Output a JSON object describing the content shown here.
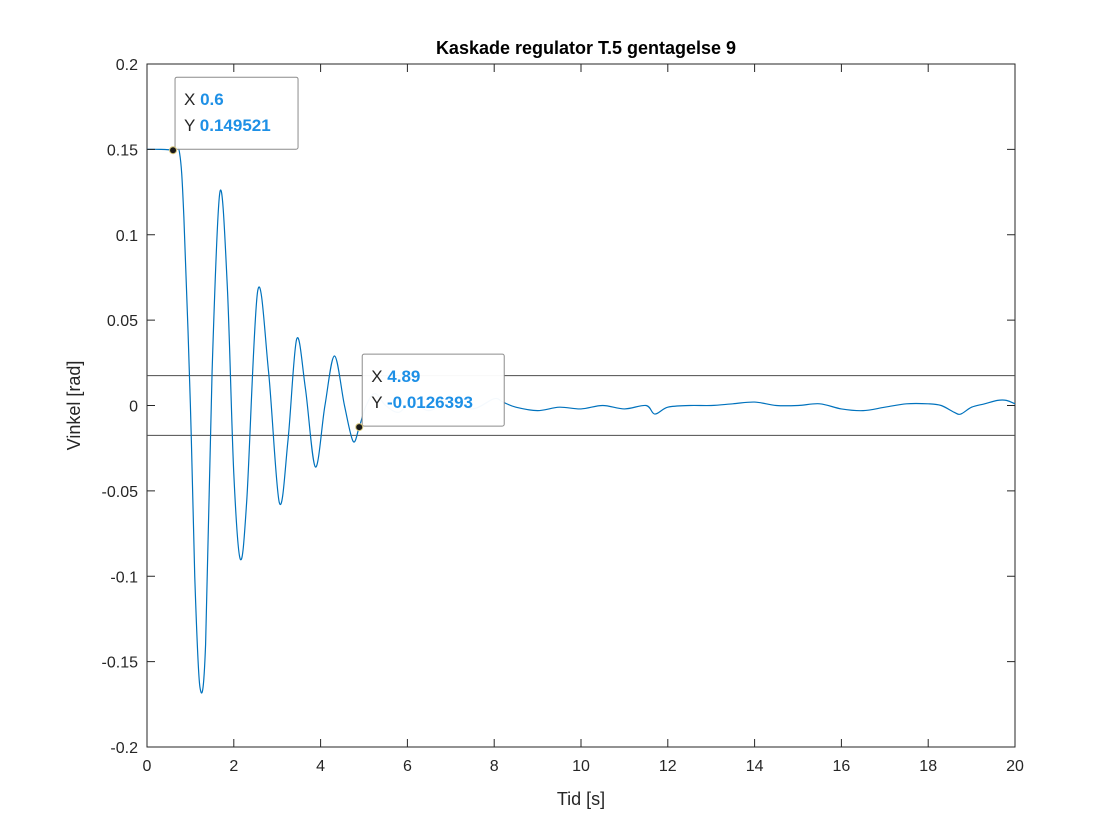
{
  "chart_data": {
    "type": "line",
    "title": "Kaskade regulator T.5 gentagelse 9",
    "xlabel": "Tid [s]",
    "ylabel": "Vinkel [rad]",
    "xlim": [
      0,
      20
    ],
    "ylim": [
      -0.2,
      0.2
    ],
    "xticks": [
      0,
      2,
      4,
      6,
      8,
      10,
      12,
      14,
      16,
      18,
      20
    ],
    "xtick_labels": [
      "0",
      "2",
      "4",
      "6",
      "8",
      "10",
      "12",
      "14",
      "16",
      "18",
      "20"
    ],
    "yticks": [
      -0.2,
      -0.15,
      -0.1,
      -0.05,
      0,
      0.05,
      0.1,
      0.15,
      0.2
    ],
    "ytick_labels": [
      "-0.2",
      "-0.15",
      "-0.1",
      "-0.05",
      "0",
      "0.05",
      "0.1",
      "0.15",
      "0.2"
    ],
    "grid": false,
    "reference_lines": [
      0.0175,
      -0.0175
    ],
    "series": [
      {
        "color": "#0072BD",
        "x": [
          0,
          0.3,
          0.6,
          0.75,
          0.85,
          1.0,
          1.1,
          1.22,
          1.35,
          1.5,
          1.68,
          1.85,
          2.0,
          2.15,
          2.3,
          2.55,
          2.8,
          3.05,
          3.25,
          3.45,
          3.65,
          3.88,
          4.1,
          4.32,
          4.55,
          4.75,
          4.89,
          5.05,
          5.25,
          5.5,
          5.8,
          6.1,
          6.5,
          7.0,
          7.5,
          8.0,
          8.2,
          8.5,
          9.0,
          9.5,
          10.0,
          10.5,
          11.0,
          11.5,
          11.7,
          12.0,
          12.5,
          13.0,
          13.5,
          14.0,
          14.5,
          15.0,
          15.5,
          16.0,
          16.5,
          17.0,
          17.5,
          18.0,
          18.3,
          18.6,
          18.75,
          19.0,
          19.3,
          19.6,
          19.8,
          20.0
        ],
        "y": [
          0.15,
          0.15,
          0.1495,
          0.148,
          0.11,
          0.0,
          -0.1,
          -0.165,
          -0.14,
          0.02,
          0.125,
          0.07,
          -0.04,
          -0.09,
          -0.055,
          0.067,
          0.02,
          -0.057,
          -0.02,
          0.039,
          0.01,
          -0.036,
          0.0,
          0.029,
          0.0,
          -0.021,
          -0.0126,
          0.0,
          0.007,
          0.0,
          -0.004,
          0.002,
          -0.003,
          0.003,
          -0.002,
          0.004,
          0.002,
          -0.001,
          -0.003,
          -0.001,
          -0.002,
          0.0,
          -0.002,
          0.0,
          -0.005,
          -0.001,
          0.0,
          0.0,
          0.001,
          0.002,
          0.0,
          0.0,
          0.001,
          -0.002,
          -0.003,
          -0.001,
          0.001,
          0.001,
          0.0,
          -0.004,
          -0.005,
          -0.001,
          0.001,
          0.003,
          0.003,
          0.001
        ]
      }
    ],
    "datatips": [
      {
        "x_key": "X",
        "x_value": "0.6",
        "y_key": "Y",
        "y_value": "0.149521",
        "x": 0.6,
        "y": 0.149521
      },
      {
        "x_key": "X",
        "x_value": "4.89",
        "y_key": "Y",
        "y_value": "-0.0126393",
        "x": 4.89,
        "y": -0.0126393
      }
    ],
    "colors": {
      "series": "#0072BD",
      "datatip_value": "#1E90E6",
      "reference_line": "#4D4D4D",
      "axes": "#262626"
    }
  }
}
